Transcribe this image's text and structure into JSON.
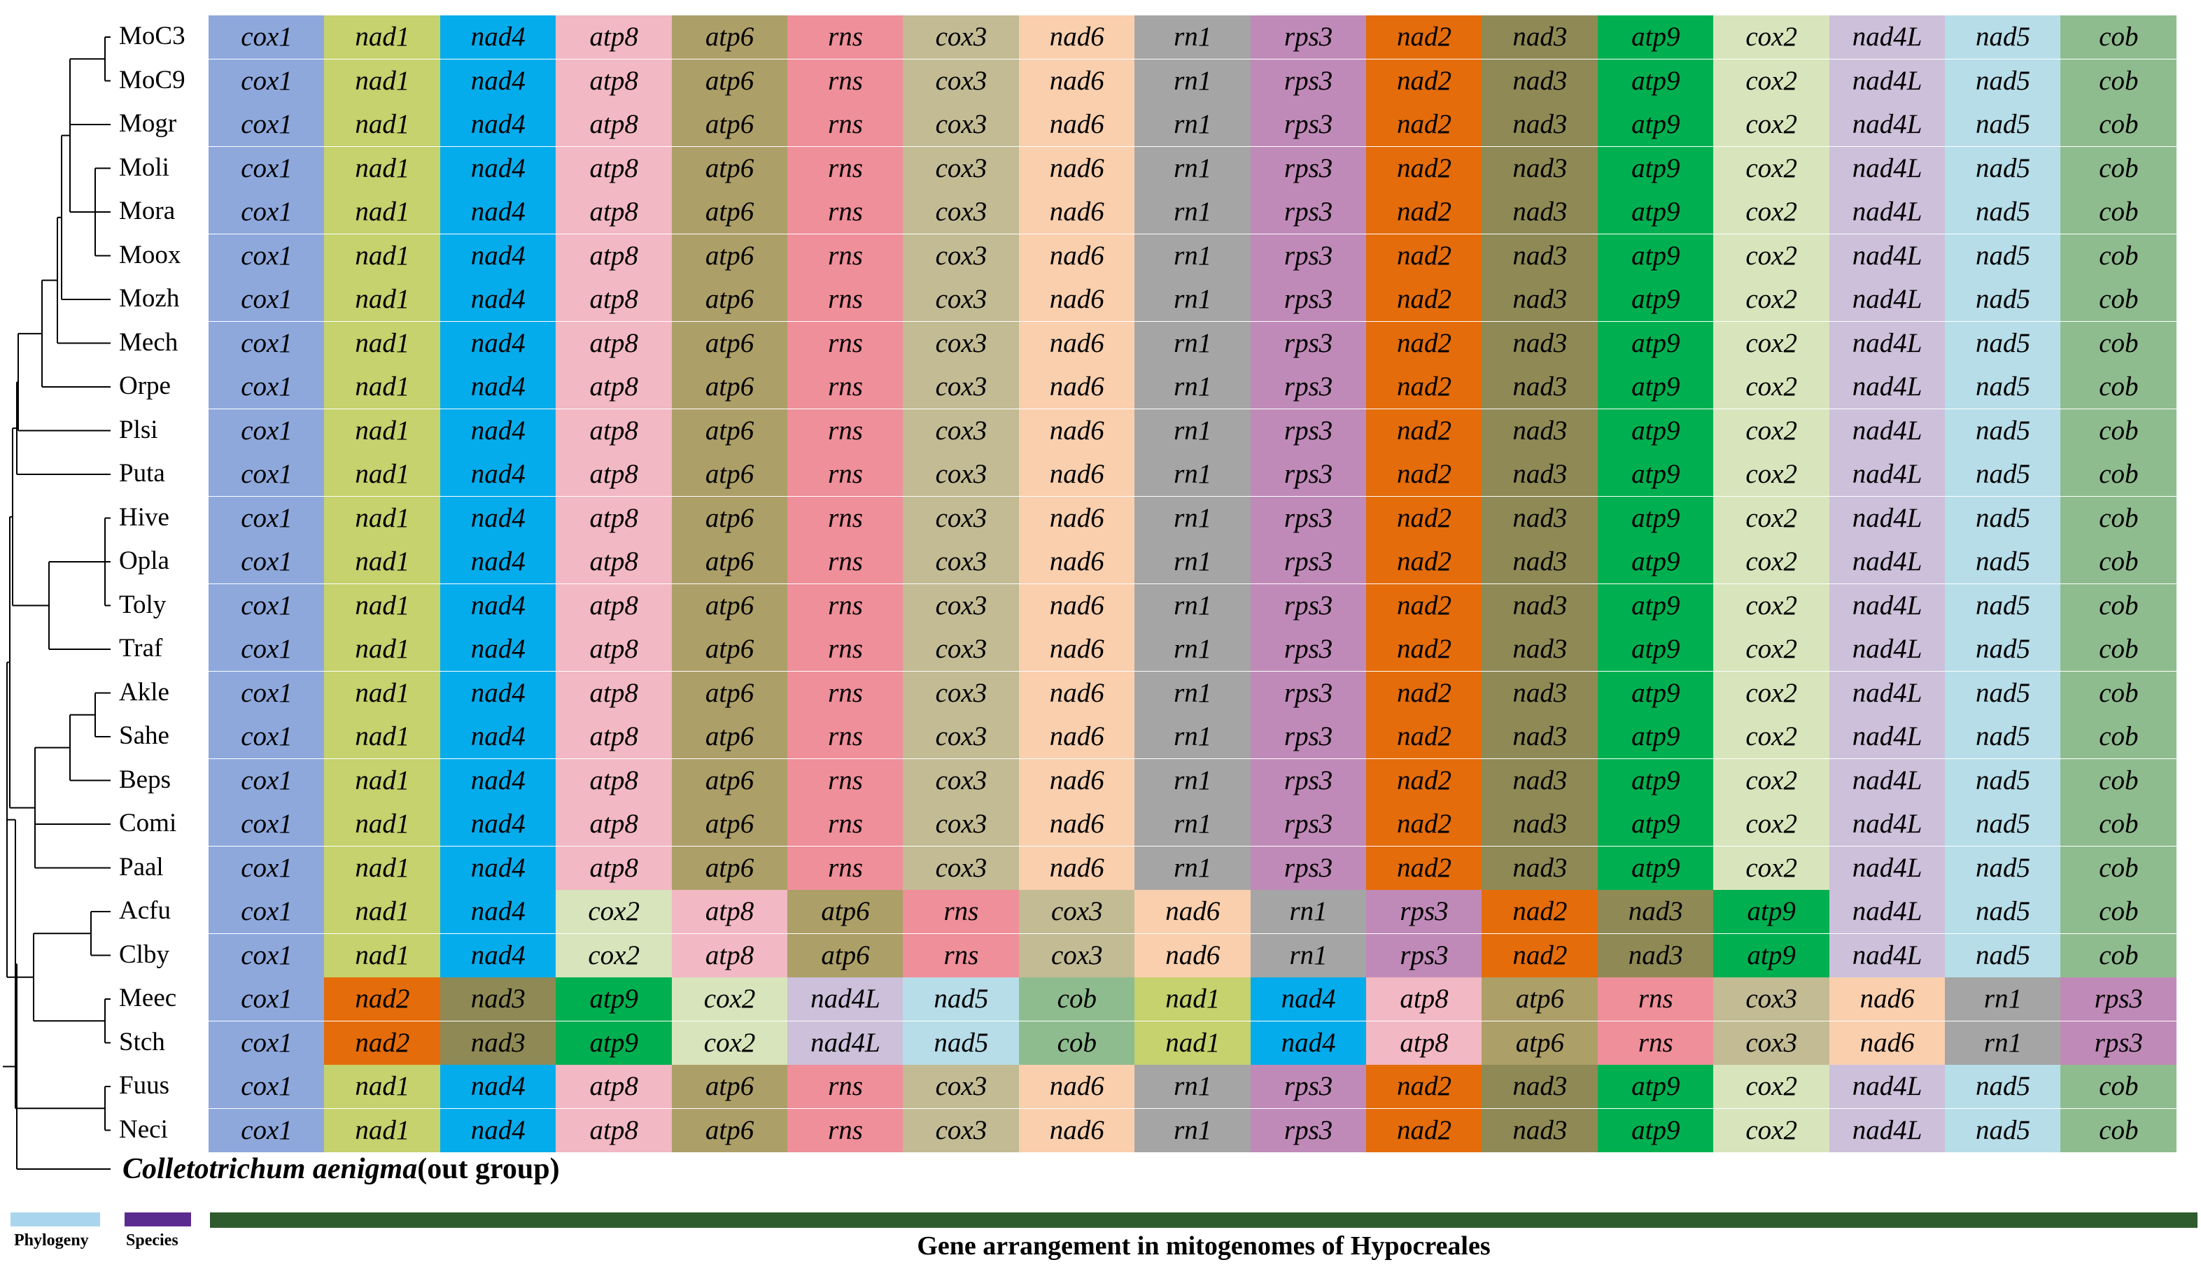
{
  "taxa": [
    "MoC3",
    "MoC9",
    "Mogr",
    "Moli",
    "Mora",
    "Moox",
    "Mozh",
    "Mech",
    "Orpe",
    "Plsi",
    "Puta",
    "Hive",
    "Opla",
    "Toly",
    "Traf",
    "Akle",
    "Sahe",
    "Beps",
    "Comi",
    "Paal",
    "Acfu",
    "Clby",
    "Meec",
    "Stch",
    "Fuus",
    "Neci"
  ],
  "outgroup": {
    "species": "Colletotrichum aenigma",
    "suffix": "(out group)"
  },
  "gene_colors": {
    "cox1": "#8ea8dc",
    "nad1": "#c5d26d",
    "nad4": "#05acec",
    "atp8": "#f2b8c3",
    "atp6": "#ad9f68",
    "rns": "#ee8f9a",
    "cox3": "#c2bb94",
    "nad6": "#f9cfae",
    "rn1": "#a5a5a5",
    "rps3": "#c08ab8",
    "nad2": "#e46c0a",
    "nad3": "#8f8a55",
    "atp9": "#00b050",
    "cox2": "#d8e4bc",
    "nad4L": "#ccc0da",
    "nad5": "#b7dde8",
    "cob": "#8fbc8f"
  },
  "arrangements": {
    "standard": [
      "cox1",
      "nad1",
      "nad4",
      "atp8",
      "atp6",
      "rns",
      "cox3",
      "nad6",
      "rn1",
      "rps3",
      "nad2",
      "nad3",
      "atp9",
      "cox2",
      "nad4L",
      "nad5",
      "cob"
    ],
    "acfu_clby": [
      "cox1",
      "nad1",
      "nad4",
      "cox2",
      "atp8",
      "atp6",
      "rns",
      "cox3",
      "nad6",
      "rn1",
      "rps3",
      "nad2",
      "nad3",
      "atp9",
      "nad4L",
      "nad5",
      "cob"
    ],
    "meec_stch": [
      "cox1",
      "nad2",
      "nad3",
      "atp9",
      "cox2",
      "nad4L",
      "nad5",
      "cob",
      "nad1",
      "nad4",
      "atp8",
      "atp6",
      "rns",
      "cox3",
      "nad6",
      "rn1",
      "rps3"
    ]
  },
  "row_arrangement": [
    "standard",
    "standard",
    "standard",
    "standard",
    "standard",
    "standard",
    "standard",
    "standard",
    "standard",
    "standard",
    "standard",
    "standard",
    "standard",
    "standard",
    "standard",
    "standard",
    "standard",
    "standard",
    "standard",
    "standard",
    "acfu_clby",
    "acfu_clby",
    "meec_stch",
    "meec_stch",
    "standard",
    "standard"
  ],
  "legend": [
    {
      "label": "Phylogeny",
      "color": "#a9d6ee"
    },
    {
      "label": "Species",
      "color": "#5b2c8f"
    }
  ],
  "gene_bar": {
    "title": "Gene arrangement in mitogenomes of Hypocreales",
    "color": "#2e5c2e"
  }
}
